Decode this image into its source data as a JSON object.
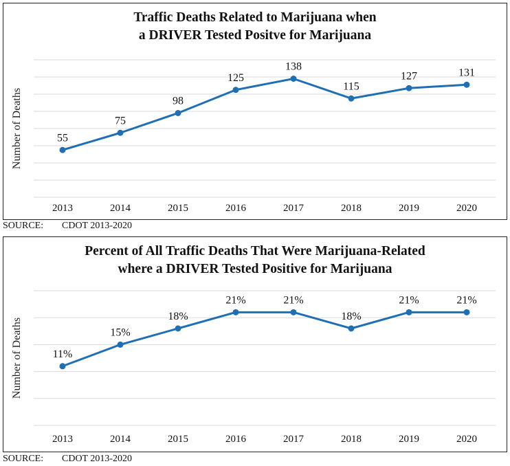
{
  "chart_data": [
    {
      "type": "line",
      "title": "Traffic Deaths Related to Marijuana when",
      "subtitle": "a DRIVER Tested Positve for Marijuana",
      "ylabel": "Number of Deaths",
      "xlabel": "",
      "categories": [
        "2013",
        "2014",
        "2015",
        "2016",
        "2017",
        "2018",
        "2019",
        "2020"
      ],
      "values": [
        55,
        75,
        98,
        125,
        138,
        115,
        127,
        131
      ],
      "data_labels": [
        "55",
        "75",
        "98",
        "125",
        "138",
        "115",
        "127",
        "131"
      ],
      "ylim": [
        0,
        160
      ],
      "grid": true,
      "color": "#1f6fb4"
    },
    {
      "type": "line",
      "title": "Percent of All Traffic Deaths That Were Marijuana-Related",
      "subtitle": "where a DRIVER Tested Positive for Marijuana",
      "ylabel": "Number of Deaths",
      "xlabel": "",
      "categories": [
        "2013",
        "2014",
        "2015",
        "2016",
        "2017",
        "2018",
        "2019",
        "2020"
      ],
      "values": [
        11,
        15,
        18,
        21,
        21,
        18,
        21,
        21
      ],
      "data_labels": [
        "11%",
        "15%",
        "18%",
        "21%",
        "21%",
        "18%",
        "21%",
        "21%"
      ],
      "ylim": [
        0,
        25
      ],
      "grid": true,
      "color": "#1f6fb4"
    }
  ],
  "sources": [
    {
      "label": "SOURCE:",
      "text": "CDOT 2013-2020"
    },
    {
      "label": "SOURCE:",
      "text": "CDOT 2013-2020"
    }
  ]
}
